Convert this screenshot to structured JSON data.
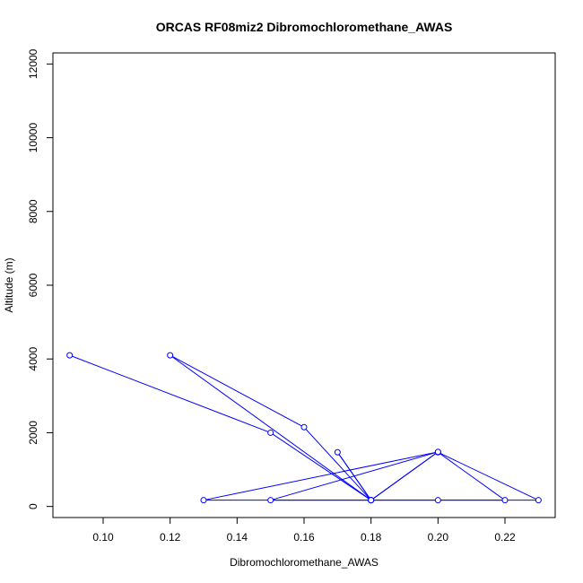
{
  "chart_data": {
    "type": "line",
    "title": "ORCAS RF08miz2 Dibromochloromethane_AWAS",
    "xlabel": "Dibromochloromethane_AWAS",
    "ylabel": "Altitude (m)",
    "xlim": [
      0.085,
      0.235
    ],
    "ylim": [
      -300,
      12300
    ],
    "xticks": [
      "0.10",
      "0.12",
      "0.14",
      "0.16",
      "0.18",
      "0.20",
      "0.22"
    ],
    "yticks": [
      "0",
      "2000",
      "4000",
      "6000",
      "8000",
      "10000",
      "12000"
    ],
    "grid": false,
    "legend": "none",
    "color": "#0000ff",
    "series": [
      {
        "x": [
          0.09,
          0.15,
          0.18,
          0.12,
          0.16,
          0.18,
          0.13,
          0.2,
          0.18,
          0.17,
          0.18,
          0.2,
          0.22,
          0.2,
          0.23,
          0.18,
          0.15,
          0.2,
          0.18
        ],
        "y": [
          4100,
          2000,
          170,
          4100,
          2150,
          170,
          170,
          1480,
          170,
          1470,
          170,
          170,
          170,
          1470,
          170,
          170,
          170,
          1480,
          170
        ]
      }
    ]
  }
}
